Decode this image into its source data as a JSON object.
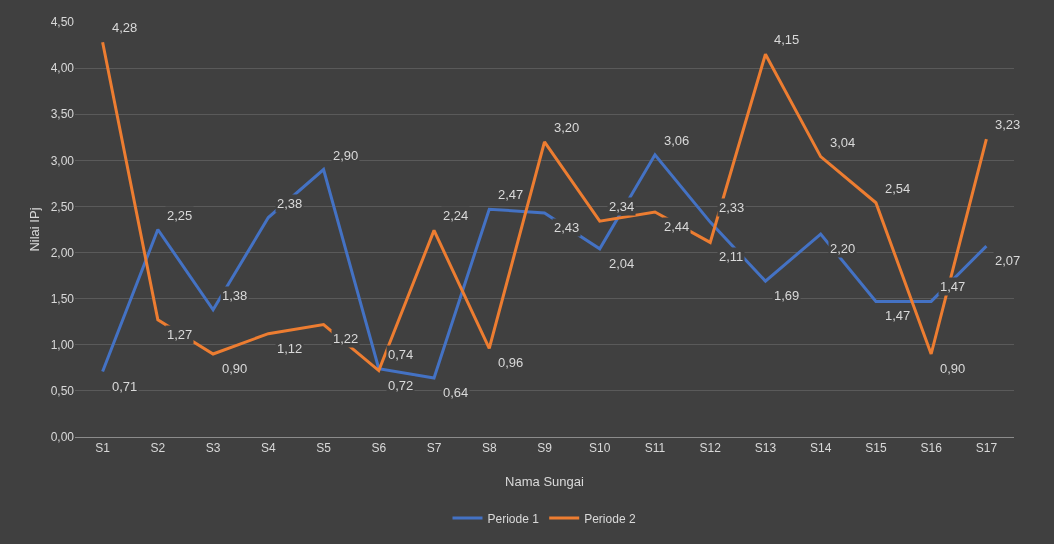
{
  "chart_data": {
    "type": "line",
    "xlabel": "Nama Sungai",
    "ylabel": "Nilai IPj",
    "categories": [
      "S1",
      "S2",
      "S3",
      "S4",
      "S5",
      "S6",
      "S7",
      "S8",
      "S9",
      "S10",
      "S11",
      "S12",
      "S13",
      "S14",
      "S15",
      "S16",
      "S17"
    ],
    "series": [
      {
        "name": "Periode 1",
        "color": "#4472c4",
        "values": [
          0.71,
          2.25,
          1.38,
          2.38,
          2.9,
          0.74,
          0.64,
          2.47,
          2.43,
          2.04,
          3.06,
          2.33,
          1.69,
          2.2,
          1.47,
          1.47,
          2.07
        ],
        "value_labels": [
          "0,71",
          "2,25",
          "1,38",
          "2,38",
          "2,90",
          "0,74",
          "0,64",
          "2,47",
          "2,43",
          "2,04",
          "3,06",
          "2,33",
          "1,69",
          "2,20",
          "1,47",
          "1,47",
          "2,07"
        ]
      },
      {
        "name": "Periode 2",
        "color": "#ed7d31",
        "values": [
          4.28,
          1.27,
          0.9,
          1.12,
          1.22,
          0.72,
          2.24,
          0.96,
          3.2,
          2.34,
          2.44,
          2.11,
          4.15,
          3.04,
          2.54,
          0.9,
          3.23
        ],
        "value_labels": [
          "4,28",
          "1,27",
          "0,90",
          "1,12",
          "1,22",
          "0,72",
          "2,24",
          "0,96",
          "3,20",
          "2,34",
          "2,44",
          "2,11",
          "4,15",
          "3,04",
          "2,54",
          "0,90",
          "3,23"
        ]
      }
    ],
    "ylim": [
      0,
      4.5
    ],
    "yticks": [
      {
        "value": 0,
        "label": "0,00"
      },
      {
        "value": 0.5,
        "label": "0,50"
      },
      {
        "value": 1,
        "label": "1,00"
      },
      {
        "value": 1.5,
        "label": "1,50"
      },
      {
        "value": 2,
        "label": "2,00"
      },
      {
        "value": 2.5,
        "label": "2,50"
      },
      {
        "value": 3,
        "label": "3,00"
      },
      {
        "value": 3.5,
        "label": "3,50"
      },
      {
        "value": 4,
        "label": "4,00"
      },
      {
        "value": 4.5,
        "label": "4,50"
      }
    ],
    "grid": "y",
    "legend": "bottom",
    "marker": "none",
    "line_style": "solid"
  }
}
